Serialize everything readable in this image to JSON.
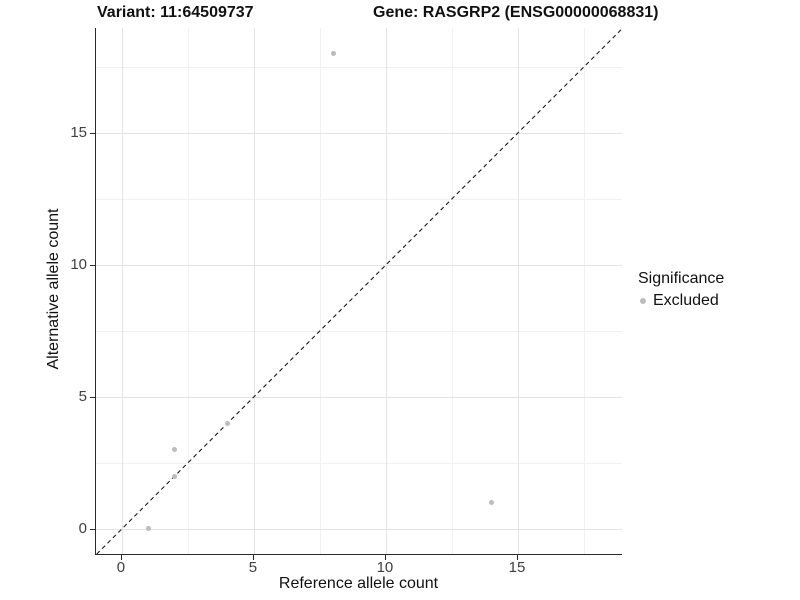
{
  "header": {
    "title_left": "Variant: 11:64509737",
    "title_right": "Gene: RASGRP2 (ENSG00000068831)"
  },
  "chart_data": {
    "type": "scatter",
    "title": "Variant: 11:64509737 / Gene: RASGRP2 (ENSG00000068831)",
    "xlabel": "Reference allele count",
    "ylabel": "Alternative allele count",
    "xlim": [
      -0.98,
      18.94
    ],
    "ylim": [
      -0.95,
      18.97
    ],
    "x_ticks": [
      0,
      5,
      10,
      15
    ],
    "y_ticks": [
      0,
      5,
      10,
      15
    ],
    "x_minor_ticks": [
      2.5,
      7.5,
      12.5,
      17.5
    ],
    "y_minor_ticks": [
      2.5,
      7.5,
      12.5,
      17.5
    ],
    "grid": "major+minor",
    "identity_line": {
      "slope": 1,
      "intercept": 0,
      "style": "dashed",
      "color": "#1a1a1a"
    },
    "series": [
      {
        "name": "Excluded",
        "color": "#bcbcbc",
        "points": [
          [
            1,
            0
          ],
          [
            2,
            2
          ],
          [
            2,
            3
          ],
          [
            4,
            4
          ],
          [
            8,
            18
          ],
          [
            14,
            1
          ]
        ]
      }
    ],
    "legend": {
      "title": "Significance",
      "position": "right",
      "entries": [
        {
          "label": "Excluded",
          "color": "#bcbcbc"
        }
      ]
    }
  },
  "colors": {
    "background": "#ffffff",
    "axis_line": "#2b2b2b",
    "tick_label": "#404040",
    "grid_major": "#e4e4e4",
    "grid_minor": "#f1f1f1",
    "point": "#bcbcbc"
  }
}
